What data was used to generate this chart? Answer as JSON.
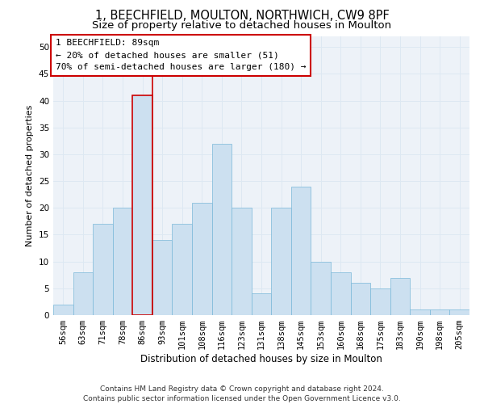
{
  "title1": "1, BEECHFIELD, MOULTON, NORTHWICH, CW9 8PF",
  "title2": "Size of property relative to detached houses in Moulton",
  "xlabel": "Distribution of detached houses by size in Moulton",
  "ylabel": "Number of detached properties",
  "categories": [
    "56sqm",
    "63sqm",
    "71sqm",
    "78sqm",
    "86sqm",
    "93sqm",
    "101sqm",
    "108sqm",
    "116sqm",
    "123sqm",
    "131sqm",
    "138sqm",
    "145sqm",
    "153sqm",
    "160sqm",
    "168sqm",
    "175sqm",
    "183sqm",
    "190sqm",
    "198sqm",
    "205sqm"
  ],
  "values": [
    2,
    8,
    17,
    20,
    41,
    14,
    17,
    21,
    32,
    20,
    4,
    20,
    24,
    10,
    8,
    6,
    5,
    7,
    1,
    1,
    1
  ],
  "bar_color": "#cce0f0",
  "bar_edge_color": "#7ab8d9",
  "highlight_bar_index": 4,
  "highlight_edge_color": "#cc0000",
  "vline_color": "#cc0000",
  "annotation_text": "1 BEECHFIELD: 89sqm\n← 20% of detached houses are smaller (51)\n70% of semi-detached houses are larger (180) →",
  "annotation_box_edge_color": "#cc0000",
  "ylim": [
    0,
    52
  ],
  "yticks": [
    0,
    5,
    10,
    15,
    20,
    25,
    30,
    35,
    40,
    45,
    50
  ],
  "grid_color": "#dde8f2",
  "background_color": "#edf2f8",
  "footer_text": "Contains HM Land Registry data © Crown copyright and database right 2024.\nContains public sector information licensed under the Open Government Licence v3.0.",
  "title1_fontsize": 10.5,
  "title2_fontsize": 9.5,
  "xlabel_fontsize": 8.5,
  "ylabel_fontsize": 8,
  "tick_fontsize": 7.5,
  "annotation_fontsize": 8,
  "footer_fontsize": 6.5
}
